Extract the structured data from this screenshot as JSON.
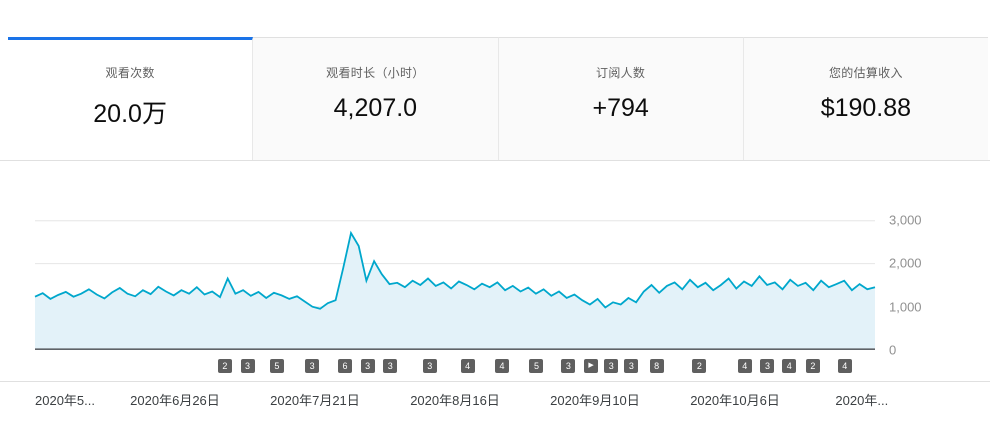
{
  "colors": {
    "accent": "#1a73e8",
    "line": "#00a7cc",
    "fill": "#e3f2f9"
  },
  "tabs": [
    {
      "label": "观看次数",
      "value": "20.0万",
      "active": true
    },
    {
      "label": "观看时长（小时）",
      "value": "4,207.0",
      "active": false
    },
    {
      "label": "订阅人数",
      "value": "+794",
      "active": false
    },
    {
      "label": "您的估算收入",
      "value": "$190.88",
      "active": false
    }
  ],
  "chart_data": {
    "type": "area",
    "title": "观看次数",
    "xlabel": "",
    "ylabel": "",
    "ylim": [
      0,
      3000
    ],
    "grid": true,
    "legend": "none",
    "y_ticks": [
      "3,000",
      "2,000",
      "1,000",
      "0"
    ],
    "x_ticks": [
      "2020年5...",
      "2020年6月26日",
      "2020年7月21日",
      "2020年8月16日",
      "2020年9月10日",
      "2020年10月6日",
      "2020年..."
    ],
    "series": [
      {
        "name": "观看次数",
        "values": [
          1230,
          1310,
          1180,
          1270,
          1340,
          1230,
          1300,
          1400,
          1280,
          1190,
          1330,
          1430,
          1300,
          1240,
          1380,
          1290,
          1460,
          1350,
          1260,
          1380,
          1300,
          1450,
          1280,
          1350,
          1220,
          1650,
          1300,
          1380,
          1250,
          1340,
          1200,
          1320,
          1260,
          1180,
          1240,
          1120,
          1000,
          950,
          1080,
          1150,
          1900,
          2700,
          2400,
          1600,
          2050,
          1750,
          1520,
          1550,
          1450,
          1600,
          1500,
          1650,
          1480,
          1560,
          1420,
          1580,
          1500,
          1400,
          1530,
          1450,
          1560,
          1380,
          1480,
          1350,
          1440,
          1300,
          1400,
          1250,
          1350,
          1200,
          1280,
          1150,
          1050,
          1180,
          980,
          1100,
          1050,
          1200,
          1100,
          1350,
          1500,
          1320,
          1480,
          1560,
          1400,
          1620,
          1450,
          1550,
          1380,
          1500,
          1650,
          1420,
          1580,
          1480,
          1700,
          1500,
          1560,
          1400,
          1620,
          1480,
          1550,
          1380,
          1600,
          1450,
          1520,
          1600,
          1380,
          1520,
          1400,
          1450
        ]
      }
    ]
  },
  "video_markers": [
    {
      "label": "2",
      "pos": 22.6
    },
    {
      "label": "3",
      "pos": 25.3
    },
    {
      "label": "5",
      "pos": 28.8
    },
    {
      "label": "3",
      "pos": 33.0
    },
    {
      "label": "6",
      "pos": 36.9
    },
    {
      "label": "3",
      "pos": 39.6
    },
    {
      "label": "3",
      "pos": 42.3
    },
    {
      "label": "3",
      "pos": 47.0
    },
    {
      "label": "4",
      "pos": 51.5
    },
    {
      "label": "4",
      "pos": 55.6
    },
    {
      "label": "5",
      "pos": 59.7
    },
    {
      "label": "3",
      "pos": 63.5
    },
    {
      "label": "▶",
      "pos": 66.2
    },
    {
      "label": "3",
      "pos": 68.6
    },
    {
      "label": "3",
      "pos": 71.0
    },
    {
      "label": "8",
      "pos": 74.0
    },
    {
      "label": "2",
      "pos": 79.1
    },
    {
      "label": "4",
      "pos": 84.5
    },
    {
      "label": "3",
      "pos": 87.2
    },
    {
      "label": "4",
      "pos": 89.8
    },
    {
      "label": "2",
      "pos": 92.6
    },
    {
      "label": "4",
      "pos": 96.4
    }
  ]
}
